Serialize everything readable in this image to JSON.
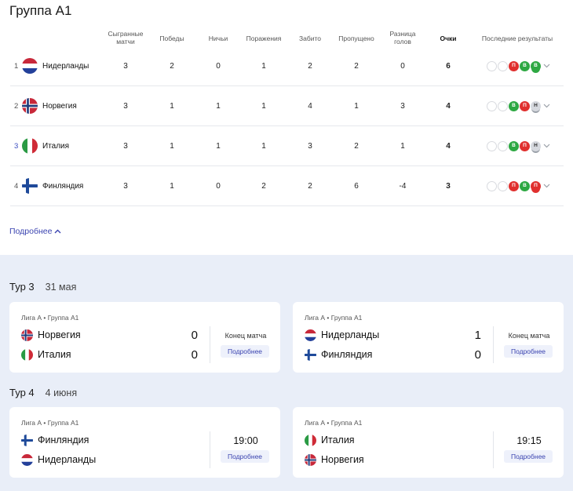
{
  "group_title": "Группа А1",
  "columns": {
    "played": "Сыгранные матчи",
    "wins": "Победы",
    "draws": "Ничьи",
    "losses": "Поражения",
    "scored": "Забито",
    "conceded": "Пропущено",
    "diff": "Разница голов",
    "points": "Очки",
    "last": "Последние результаты"
  },
  "standings": [
    {
      "rank": "1",
      "team": "Нидерланды",
      "flag": "nl-flag-icon",
      "played": "3",
      "wins": "2",
      "draws": "0",
      "losses": "1",
      "scored": "2",
      "conceded": "2",
      "diff": "0",
      "points": "6",
      "results": [
        {
          "t": "empty",
          "l": ""
        },
        {
          "t": "empty",
          "l": ""
        },
        {
          "t": "l",
          "l": "П"
        },
        {
          "t": "w",
          "l": "В"
        },
        {
          "t": "w",
          "l": "В"
        }
      ]
    },
    {
      "rank": "2",
      "team": "Норвегия",
      "flag": "no-flag-icon",
      "played": "3",
      "wins": "1",
      "draws": "1",
      "losses": "1",
      "scored": "4",
      "conceded": "1",
      "diff": "3",
      "points": "4",
      "results": [
        {
          "t": "empty",
          "l": ""
        },
        {
          "t": "empty",
          "l": ""
        },
        {
          "t": "w",
          "l": "В"
        },
        {
          "t": "l",
          "l": "П"
        },
        {
          "t": "d",
          "l": "Н"
        }
      ]
    },
    {
      "rank": "3",
      "team": "Италия",
      "flag": "it-flag-icon",
      "played": "3",
      "wins": "1",
      "draws": "1",
      "losses": "1",
      "scored": "3",
      "conceded": "2",
      "diff": "1",
      "points": "4",
      "results": [
        {
          "t": "empty",
          "l": ""
        },
        {
          "t": "empty",
          "l": ""
        },
        {
          "t": "w",
          "l": "В"
        },
        {
          "t": "l",
          "l": "П"
        },
        {
          "t": "d",
          "l": "Н"
        }
      ]
    },
    {
      "rank": "4",
      "team": "Финляндия",
      "flag": "fi-flag-icon",
      "played": "3",
      "wins": "1",
      "draws": "0",
      "losses": "2",
      "scored": "2",
      "conceded": "6",
      "diff": "-4",
      "points": "3",
      "results": [
        {
          "t": "empty",
          "l": ""
        },
        {
          "t": "empty",
          "l": ""
        },
        {
          "t": "l",
          "l": "П"
        },
        {
          "t": "w",
          "l": "В"
        },
        {
          "t": "l",
          "l": "П"
        }
      ]
    }
  ],
  "more_label": "Подробнее",
  "tours": [
    {
      "label": "Тур 3",
      "date": "31 мая"
    },
    {
      "label": "Тур 4",
      "date": "4 июня"
    }
  ],
  "matches": [
    {
      "league": "Лига А • Группа А1",
      "team1": "Норвегия",
      "team2": "Италия",
      "score1": "0",
      "score2": "0",
      "status": "Конец матча",
      "btn": "Подробнее"
    },
    {
      "league": "Лига А • Группа А1",
      "team1": "Нидерланды",
      "team2": "Финляндия",
      "score1": "1",
      "score2": "0",
      "status": "Конец матча",
      "btn": "Подробнее"
    },
    {
      "league": "Лига А • Группа А1",
      "team1": "Финляндия",
      "team2": "Нидерланды",
      "time": "19:00",
      "btn": "Подробнее"
    },
    {
      "league": "Лига А • Группа А1",
      "team1": "Италия",
      "team2": "Норвегия",
      "time": "19:15",
      "btn": "Подробнее"
    }
  ],
  "colors": {
    "win": "#2ea843",
    "loss": "#e0302e",
    "draw": "#d6d9df",
    "accent": "#3b44b0",
    "bottom_bg": "#e9eef8"
  }
}
